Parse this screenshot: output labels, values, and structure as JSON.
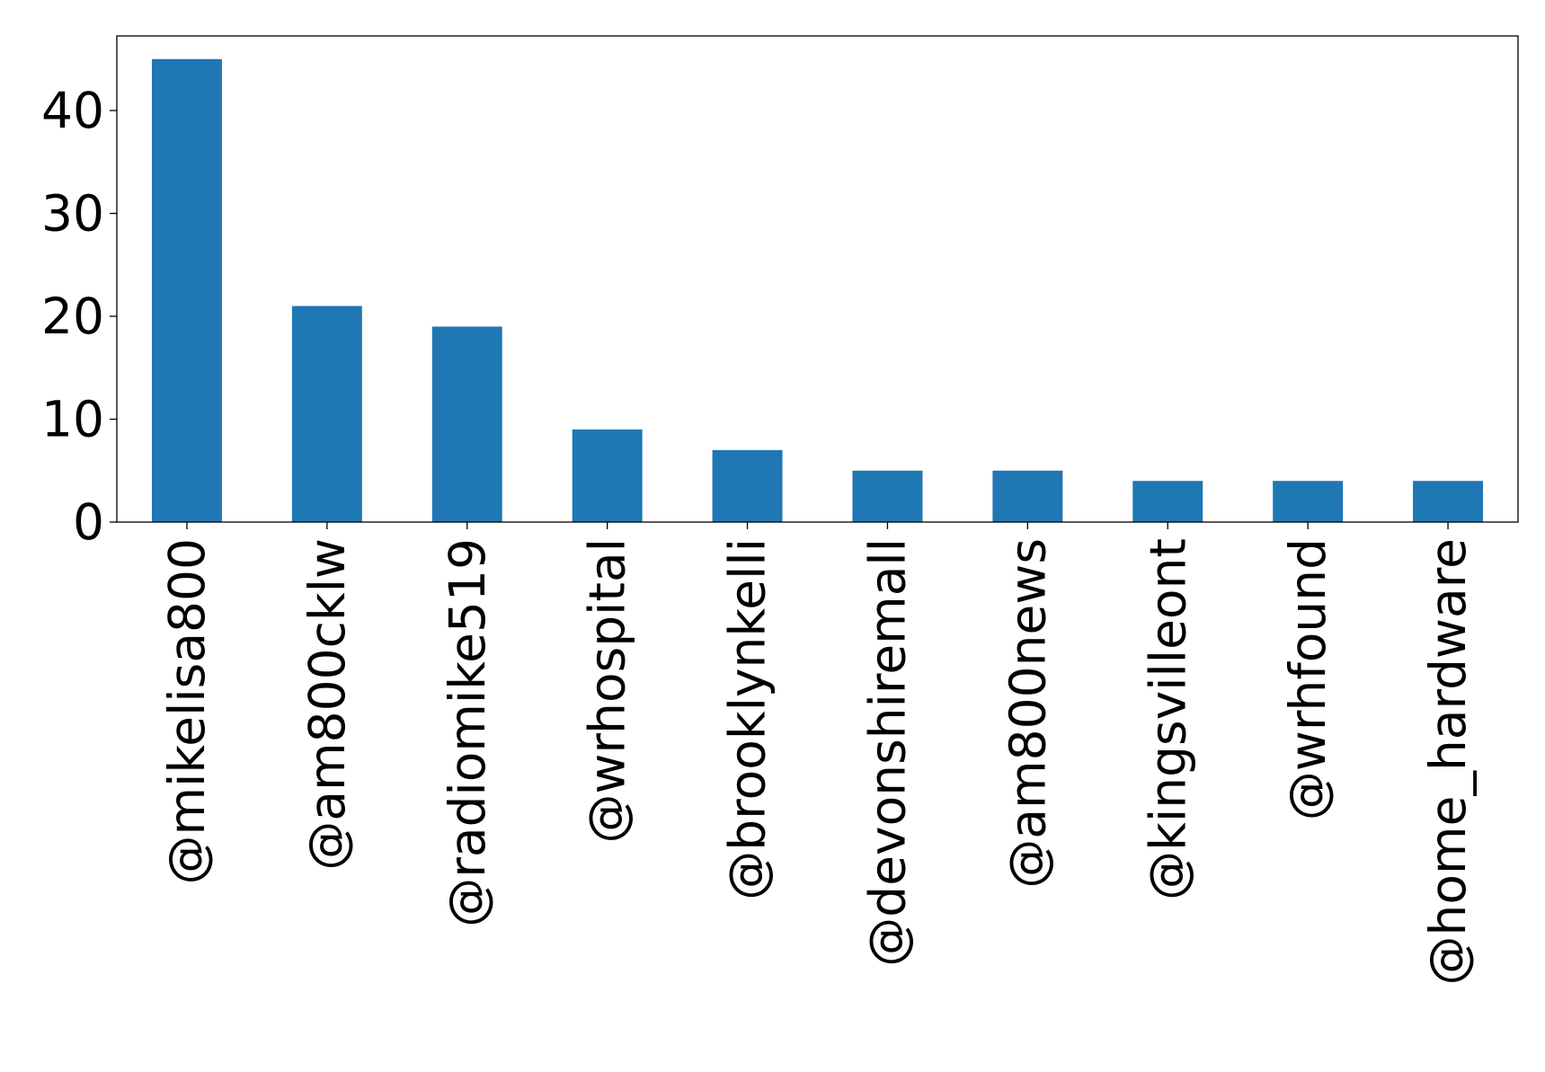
{
  "chart_data": {
    "type": "bar",
    "title": "",
    "xlabel": "",
    "ylabel": "",
    "categories": [
      "@mikelisa800",
      "@am800cklw",
      "@radiomike519",
      "@wrhospital",
      "@brooklynkelli",
      "@devonshiremall",
      "@am800news",
      "@kingsvilleont",
      "@wrhfound",
      "@home_hardware"
    ],
    "values": [
      45,
      21,
      19,
      9,
      7,
      5,
      5,
      4,
      4,
      4
    ],
    "ylim": [
      0,
      47.25
    ],
    "yticks": [
      0,
      10,
      20,
      30,
      40
    ],
    "grid": false,
    "legend": "none",
    "colors": {
      "bar": "#1f77b4",
      "axis": "#000000",
      "background": "#ffffff"
    }
  }
}
